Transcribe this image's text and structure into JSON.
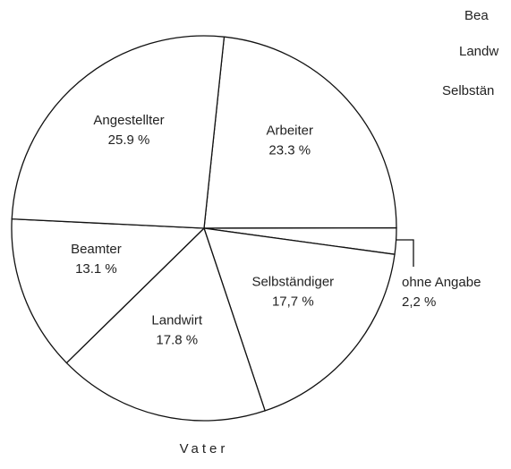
{
  "chart_data": {
    "type": "pie",
    "title": "Vater",
    "categories": [
      "Arbeiter",
      "ohne Angabe",
      "Selbständiger",
      "Landwirt",
      "Beamter",
      "Angestellter"
    ],
    "values": [
      23.3,
      2.2,
      17.7,
      17.8,
      13.1,
      25.9
    ],
    "value_labels": [
      "23.3 %",
      "2,2 %",
      "17,7 %",
      "17.8 %",
      "13.1 %",
      "25.9 %"
    ],
    "color": "#ffffff",
    "annotations": [
      "Bea",
      "Landw",
      "Selbstän"
    ]
  }
}
